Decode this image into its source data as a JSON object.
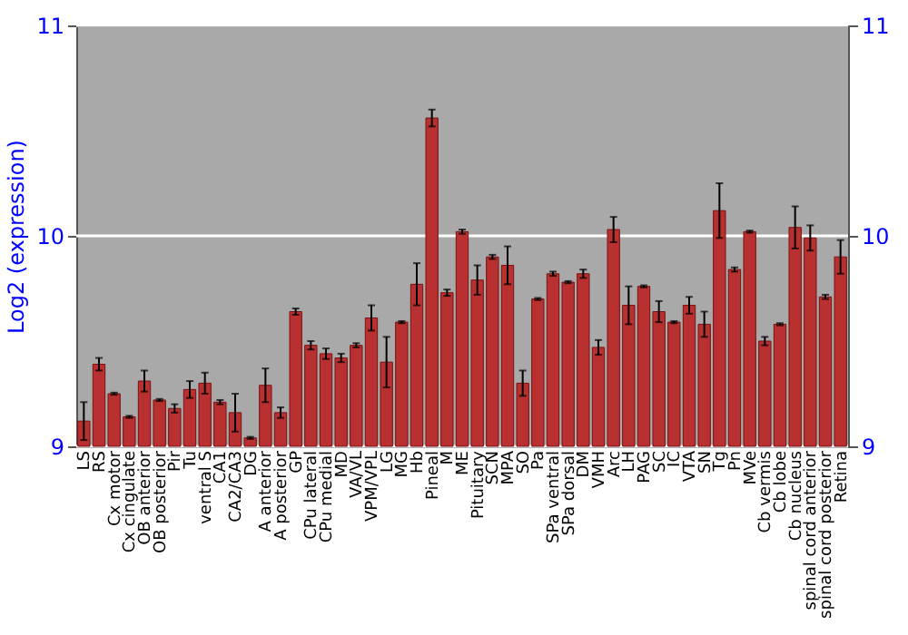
{
  "chart_data": {
    "type": "bar",
    "ylabel": "Log2 (expression)",
    "categories": [
      "LS",
      "RS",
      "Cx motor",
      "Cx cingulate",
      "OB anterior",
      "OB posterior",
      "Pir",
      "Tu",
      "ventral S",
      "CA1",
      "CA2/CA3",
      "DG",
      "A anterior",
      "A posterior",
      "GP",
      "CPu lateral",
      "CPu medial",
      "MD",
      "VA/VL",
      "VPM/VPL",
      "LG",
      "MG",
      "Hb",
      "Pineal",
      "M",
      "ME",
      "Pituitary",
      "SCN",
      "MPA",
      "SO",
      "Pa",
      "SPa ventral",
      "SPa dorsal",
      "DM",
      "VMH",
      "Arc",
      "LH",
      "PAG",
      "SC",
      "IC",
      "VTA",
      "SN",
      "Tg",
      "Pn",
      "MVe",
      "Cb vermis",
      "Cb lobe",
      "Cb nucleus",
      "spinal cord anterior",
      "spinal cord posterior",
      "Retina"
    ],
    "values": [
      9.12,
      9.39,
      9.25,
      9.14,
      9.31,
      9.22,
      9.18,
      9.27,
      9.3,
      9.21,
      9.16,
      9.04,
      9.29,
      9.16,
      9.64,
      9.48,
      9.44,
      9.42,
      9.48,
      9.61,
      9.4,
      9.59,
      9.77,
      10.56,
      9.73,
      10.02,
      9.79,
      9.9,
      9.86,
      9.3,
      9.7,
      9.82,
      9.78,
      9.82,
      9.47,
      10.03,
      9.67,
      9.76,
      9.64,
      9.59,
      9.67,
      9.58,
      10.12,
      9.84,
      10.02,
      9.5,
      9.58,
      10.04,
      9.99,
      9.71,
      9.9
    ],
    "errors": [
      0.09,
      0.03,
      0.005,
      0.005,
      0.05,
      0.005,
      0.02,
      0.04,
      0.05,
      0.01,
      0.09,
      0.005,
      0.08,
      0.025,
      0.015,
      0.02,
      0.025,
      0.02,
      0.01,
      0.06,
      0.12,
      0.005,
      0.1,
      0.04,
      0.015,
      0.01,
      0.07,
      0.01,
      0.09,
      0.06,
      0.005,
      0.01,
      0.005,
      0.02,
      0.035,
      0.06,
      0.09,
      0.005,
      0.05,
      0.005,
      0.04,
      0.06,
      0.13,
      0.01,
      0.005,
      0.02,
      0.005,
      0.1,
      0.06,
      0.01,
      0.08
    ],
    "color": "#b83030",
    "ylim": [
      9,
      11
    ],
    "yticks": [
      9,
      10,
      11
    ],
    "y2lim": [
      9,
      11
    ],
    "y2ticks": [
      9,
      10,
      11
    ],
    "grid": "y"
  }
}
